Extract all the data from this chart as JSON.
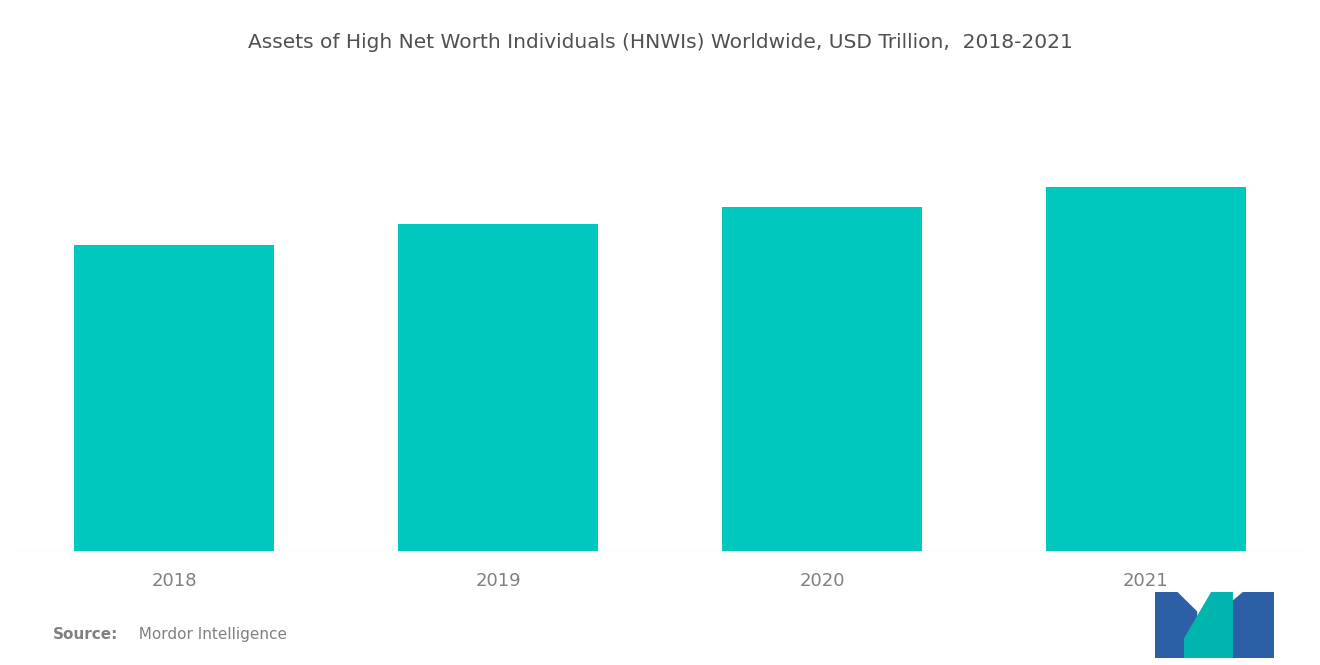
{
  "title": "Assets of High Net Worth Individuals (HNWIs) Worldwide, USD Trillion,  2018-2021",
  "categories": [
    "2018",
    "2019",
    "2020",
    "2021"
  ],
  "values": [
    74,
    79,
    83,
    88
  ],
  "bar_color": "#00C8BE",
  "background_color": "#ffffff",
  "title_fontsize": 14.5,
  "tick_fontsize": 13,
  "source_bold": "Source:",
  "source_normal": "  Mordor Intelligence",
  "ylim": [
    0,
    115
  ],
  "bar_width": 0.62
}
